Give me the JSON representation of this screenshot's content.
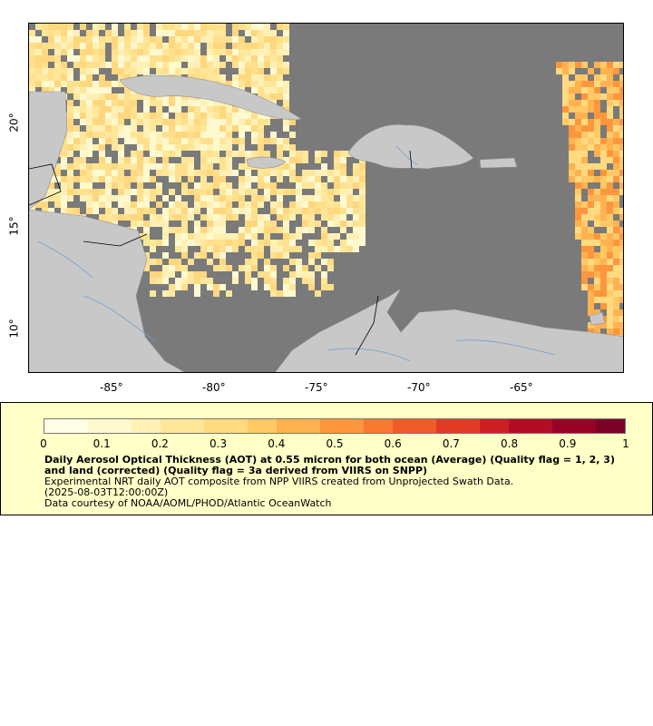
{
  "map": {
    "x_ticks": [
      "-85°",
      "-80°",
      "-75°",
      "-70°",
      "-65°"
    ],
    "y_ticks": [
      "20°",
      "15°",
      "10°"
    ],
    "lon_range": [
      -89.0,
      -60.0
    ],
    "lat_range": [
      8.0,
      25.0
    ],
    "land_color": "#c8c8c8",
    "nodata_color": "#7a7a7a",
    "river_color": "#6fa0cf"
  },
  "colorbar": {
    "ticks": [
      "0",
      "0.1",
      "0.2",
      "0.3",
      "0.4",
      "0.5",
      "0.6",
      "0.7",
      "0.8",
      "0.9",
      "1"
    ],
    "range": [
      0,
      1
    ],
    "colors": [
      "#ffffe6",
      "#fff9cf",
      "#fff1b5",
      "#ffe79a",
      "#ffda80",
      "#ffc966",
      "#ffb24f",
      "#fd963d",
      "#f87a32",
      "#f05b2a",
      "#e23b25",
      "#cd1f24",
      "#b30d26",
      "#960326",
      "#7a0026"
    ]
  },
  "legend": {
    "title": "Daily Aerosol Optical Thickness (AOT) at 0.55 micron for both ocean (Average) (Quality flag = 1, 2, 3) and land (corrected) (Quality flag = 3a derived from VIIRS on SNPP)",
    "line1": "Experimental NRT daily AOT composite from NPP VIIRS created from Unprojected Swath Data.",
    "line2": "(2025-08-03T12:00:00Z)",
    "line3": "Data courtesy of NOAA/AOML/PHOD/Atlantic OceanWatch"
  }
}
